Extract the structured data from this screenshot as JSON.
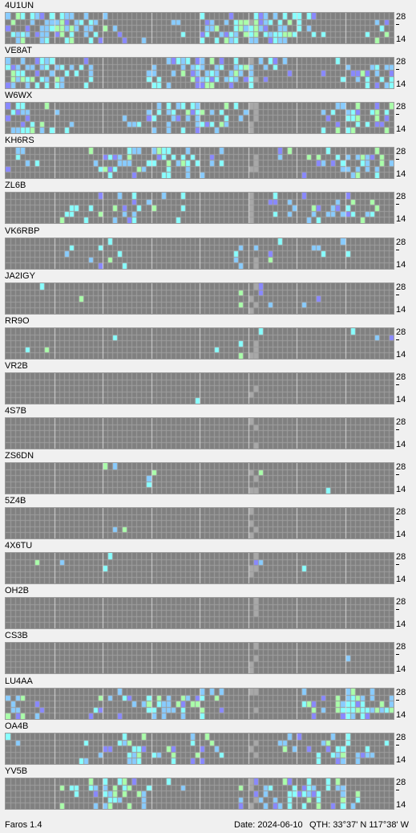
{
  "beacons": [
    {
      "call": "4U1UN"
    },
    {
      "call": "VE8AT"
    },
    {
      "call": "W6WX"
    },
    {
      "call": "KH6RS"
    },
    {
      "call": "ZL6B"
    },
    {
      "call": "VK6RBP"
    },
    {
      "call": "JA2IGY"
    },
    {
      "call": "RR9O"
    },
    {
      "call": "VR2B"
    },
    {
      "call": "4S7B"
    },
    {
      "call": "ZS6DN"
    },
    {
      "call": "5Z4B"
    },
    {
      "call": "4X6TU"
    },
    {
      "call": "OH2B"
    },
    {
      "call": "CS3B"
    },
    {
      "call": "LU4AA"
    },
    {
      "call": "OA4B"
    },
    {
      "call": "YV5B"
    }
  ],
  "axis": {
    "top_label": "28",
    "bottom_label": "14"
  },
  "activity_levels": [
    1.0,
    0.85,
    0.7,
    0.55,
    0.4,
    0.15,
    0.05,
    0.05,
    0.02,
    0.01,
    0.05,
    0.01,
    0.03,
    0.0,
    0.02,
    0.55,
    0.45,
    0.6
  ],
  "colors": {
    "background": "#f0f0f0",
    "cell_empty": "#808080",
    "cell_lines": "#9e9e9e",
    "hour_lines": "#d8d8d8",
    "signal_cyan": "#88ffff",
    "signal_blue": "#88ccff",
    "signal_green": "#aaffaa",
    "signal_violet": "#8888ff",
    "now_marker": "#a8a8a8"
  },
  "statusbar": {
    "app": "Faros 1.4",
    "date": "Date: 2024-06-10",
    "qth": "QTH: 33°37' N  117°38' W"
  }
}
